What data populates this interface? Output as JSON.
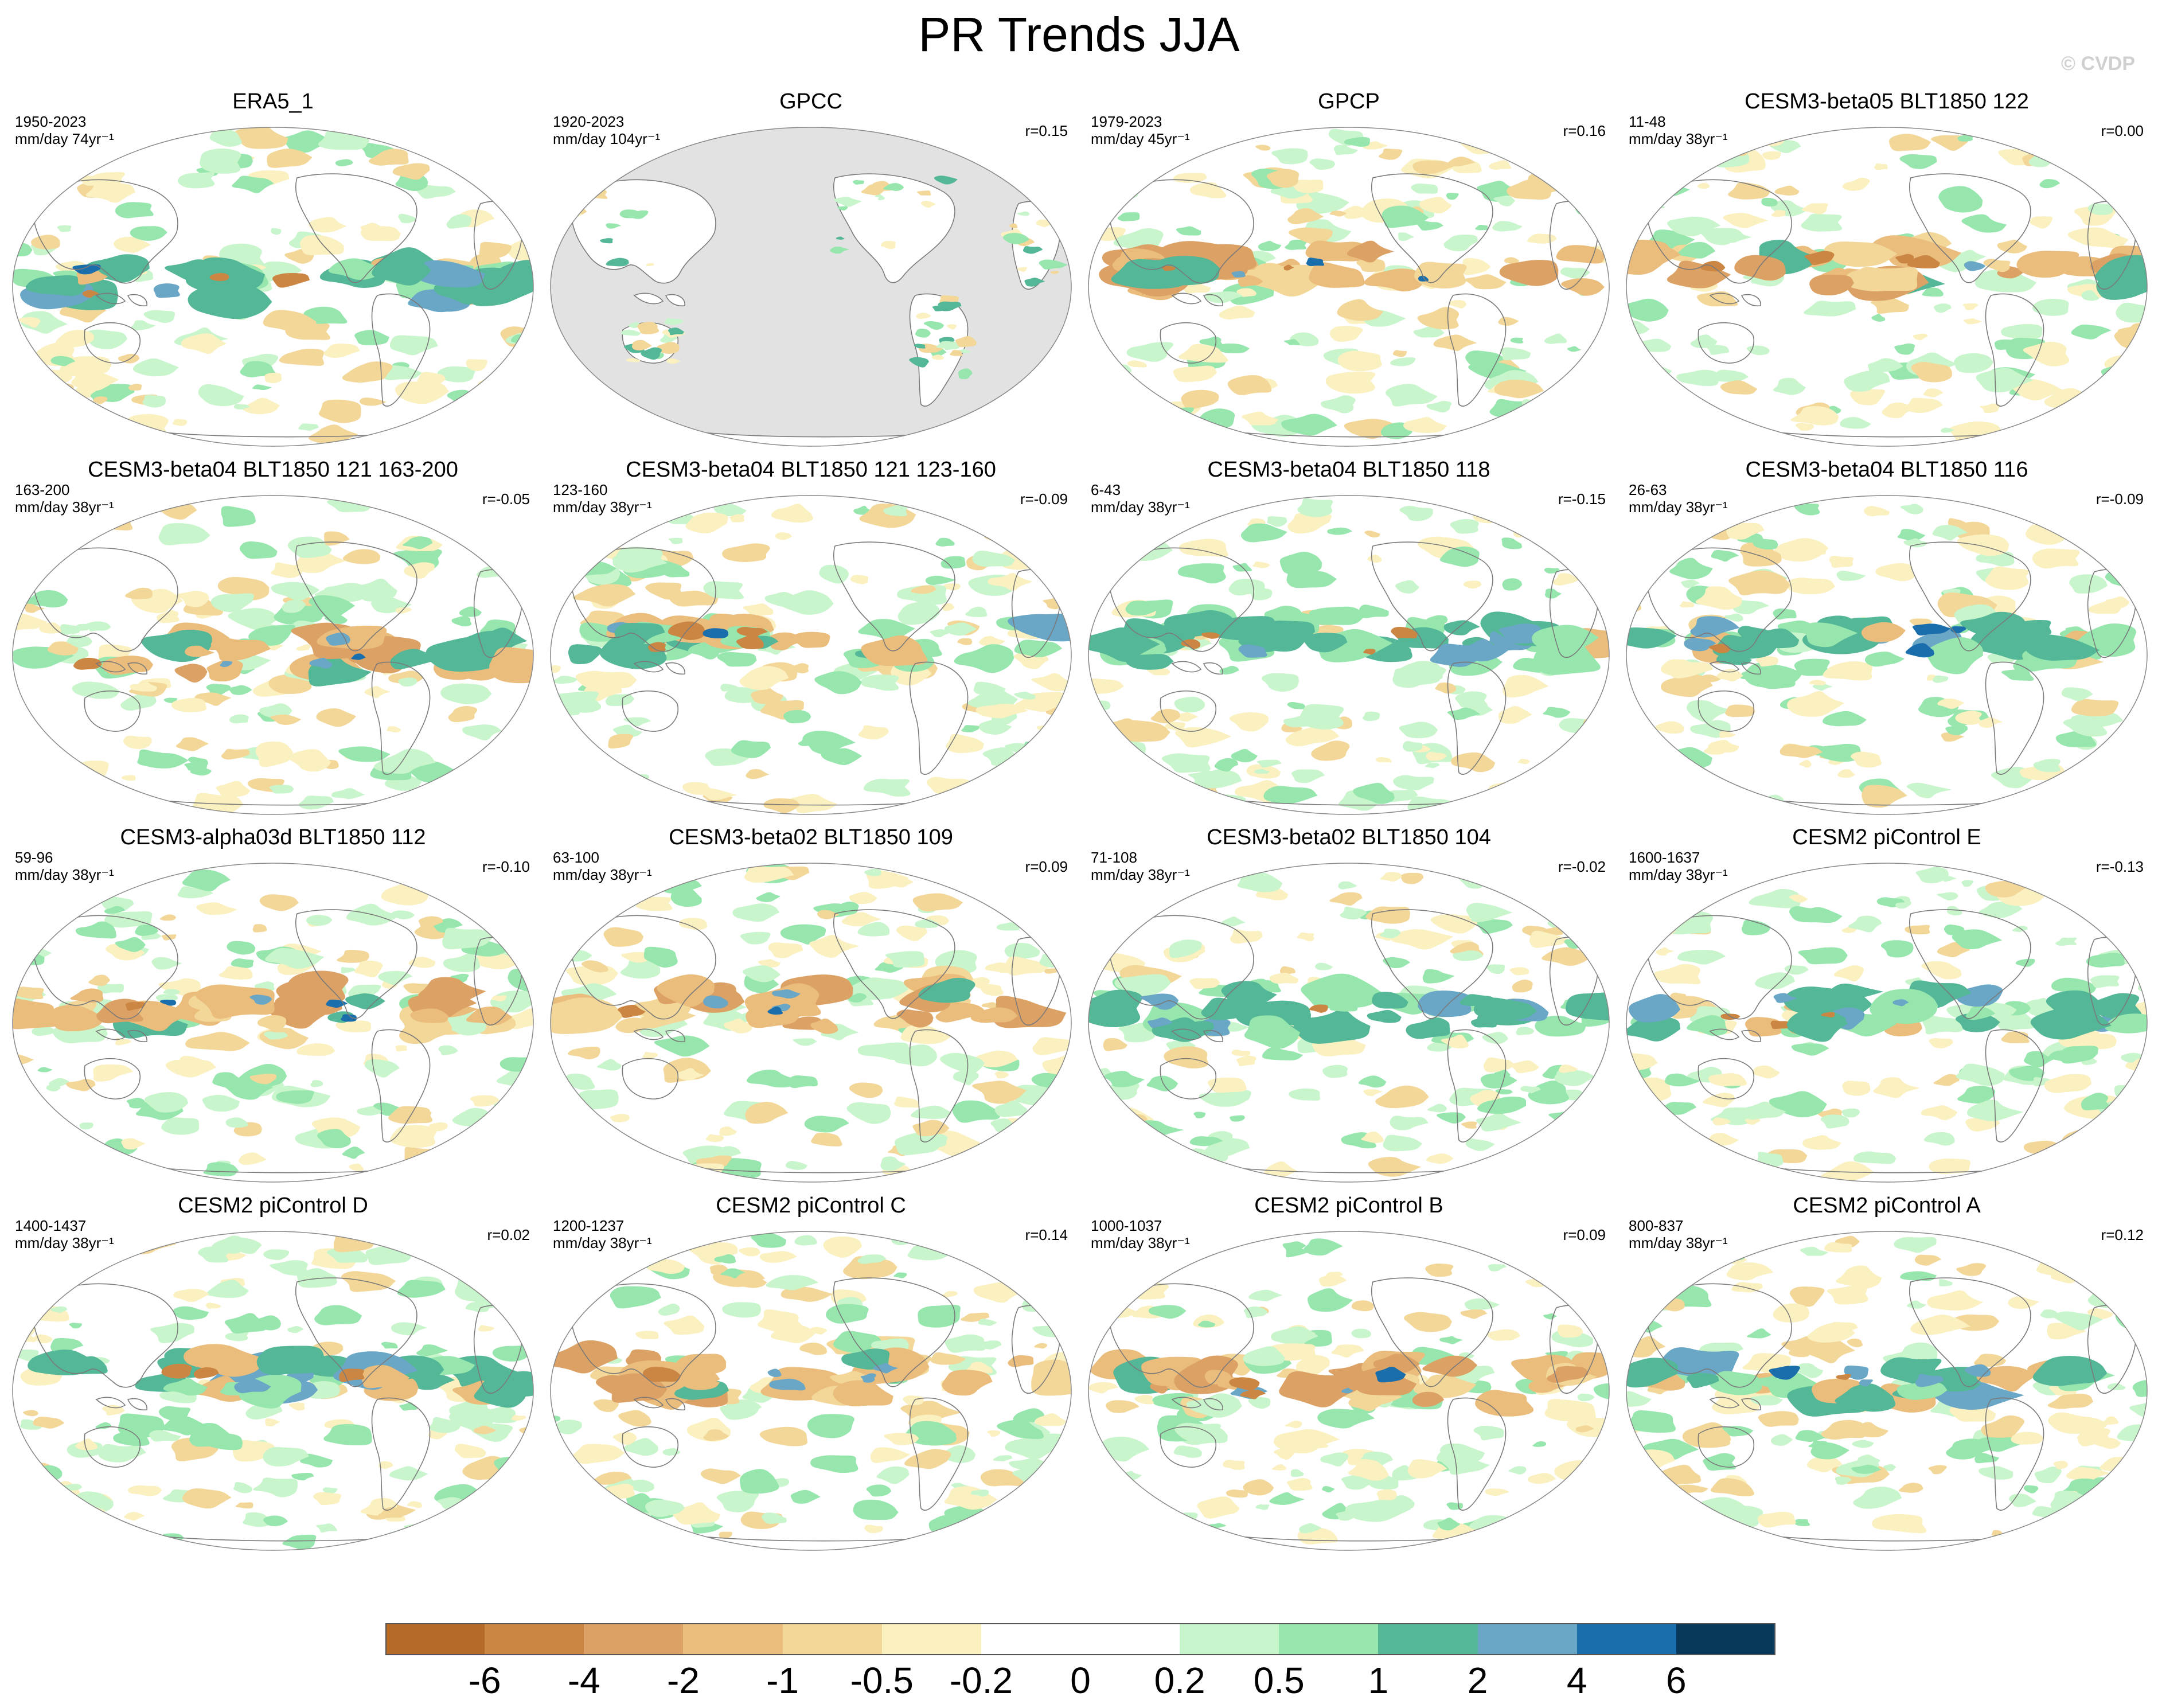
{
  "title": "PR Trends JJA",
  "watermark": "© CVDP",
  "colors": {
    "land": "#ffffff",
    "ocean_missing": "#e2e2e2",
    "coast": "#7a7a7a",
    "levels": [
      "#b56a2a",
      "#cb8643",
      "#dca165",
      "#eabd7c",
      "#f2d799",
      "#fbf0c0",
      "#ffffff",
      "#ffffff",
      "#c9f5cc",
      "#96e6ad",
      "#54b797",
      "#6aa7c6",
      "#1a6eab",
      "#07385a"
    ]
  },
  "colorbar": {
    "ticks": [
      "-6",
      "-4",
      "-2",
      "-1",
      "-0.5",
      "-0.2",
      "0",
      "0.2",
      "0.5",
      "1",
      "2",
      "4",
      "6"
    ]
  },
  "panels": [
    {
      "title": "ERA5_1",
      "period": "1950-2023",
      "units": "mm/day 74yr⁻¹",
      "r": "",
      "pattern": 0
    },
    {
      "title": "GPCC",
      "period": "1920-2023",
      "units": "mm/day 104yr⁻¹",
      "r": "r=0.15",
      "pattern": 1,
      "land_only": true
    },
    {
      "title": "GPCP",
      "period": "1979-2023",
      "units": "mm/day 45yr⁻¹",
      "r": "r=0.16",
      "pattern": 2
    },
    {
      "title": "CESM3-beta05 BLT1850 122",
      "period": "11-48",
      "units": "mm/day 38yr⁻¹",
      "r": "r=0.00",
      "pattern": 3
    },
    {
      "title": "CESM3-beta04 BLT1850 121 163-200",
      "period": "163-200",
      "units": "mm/day 38yr⁻¹",
      "r": "r=-0.05",
      "pattern": 4
    },
    {
      "title": "CESM3-beta04 BLT1850 121 123-160",
      "period": "123-160",
      "units": "mm/day 38yr⁻¹",
      "r": "r=-0.09",
      "pattern": 5
    },
    {
      "title": "CESM3-beta04 BLT1850 118",
      "period": "6-43",
      "units": "mm/day 38yr⁻¹",
      "r": "r=-0.15",
      "pattern": 6
    },
    {
      "title": "CESM3-beta04 BLT1850 116",
      "period": "26-63",
      "units": "mm/day 38yr⁻¹",
      "r": "r=-0.09",
      "pattern": 7
    },
    {
      "title": "CESM3-alpha03d BLT1850 112",
      "period": "59-96",
      "units": "mm/day 38yr⁻¹",
      "r": "r=-0.10",
      "pattern": 8
    },
    {
      "title": "CESM3-beta02 BLT1850 109",
      "period": "63-100",
      "units": "mm/day 38yr⁻¹",
      "r": "r=0.09",
      "pattern": 9
    },
    {
      "title": "CESM3-beta02 BLT1850 104",
      "period": "71-108",
      "units": "mm/day 38yr⁻¹",
      "r": "r=-0.02",
      "pattern": 10
    },
    {
      "title": "CESM2 piControl E",
      "period": "1600-1637",
      "units": "mm/day 38yr⁻¹",
      "r": "r=-0.13",
      "pattern": 11
    },
    {
      "title": "CESM2 piControl D",
      "period": "1400-1437",
      "units": "mm/day 38yr⁻¹",
      "r": "r=0.02",
      "pattern": 12
    },
    {
      "title": "CESM2 piControl C",
      "period": "1200-1237",
      "units": "mm/day 38yr⁻¹",
      "r": "r=0.14",
      "pattern": 13
    },
    {
      "title": "CESM2 piControl B",
      "period": "1000-1037",
      "units": "mm/day 38yr⁻¹",
      "r": "r=0.09",
      "pattern": 14
    },
    {
      "title": "CESM2 piControl A",
      "period": "800-837",
      "units": "mm/day 38yr⁻¹",
      "r": "r=0.12",
      "pattern": 15
    }
  ]
}
